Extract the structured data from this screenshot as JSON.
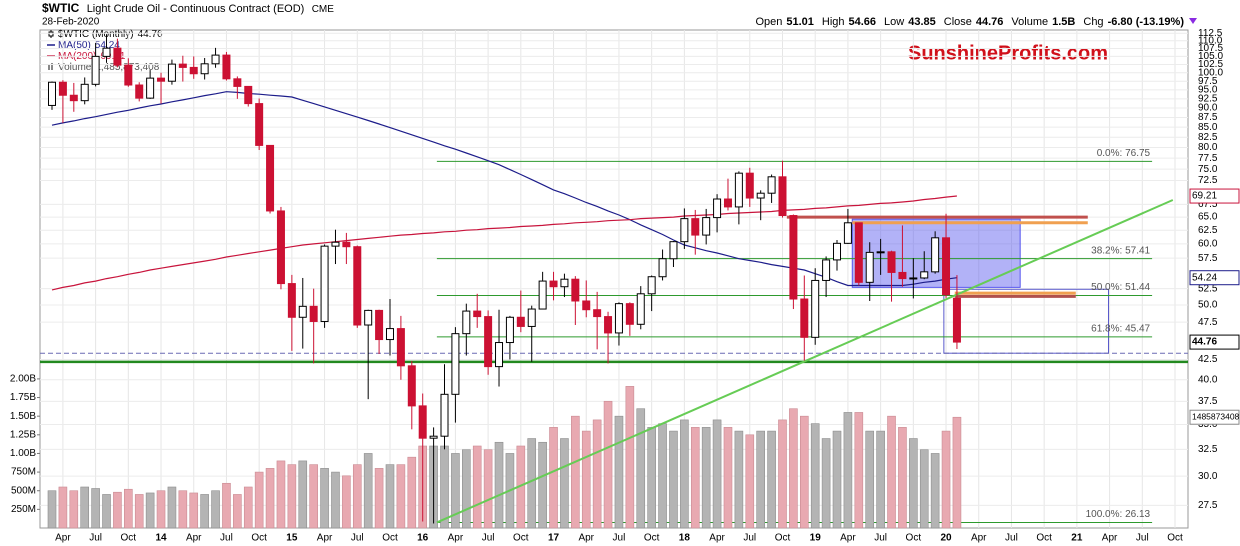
{
  "chart_data": {
    "type": "candlestick",
    "title": "$WTIC",
    "subtitle": "Light Crude Oil - Continuous Contract (EOD)",
    "exchange": "CME",
    "date": "28-Feb-2020",
    "watermark": "SunshineProfits.com",
    "quote": [
      {
        "label": "Open",
        "value": "51.01"
      },
      {
        "label": "High",
        "value": "54.66"
      },
      {
        "label": "Low",
        "value": "43.85"
      },
      {
        "label": "Close",
        "value": "44.76"
      },
      {
        "label": "Volume",
        "value": "1.5B"
      },
      {
        "label": "Chg",
        "value": "-6.80 (-13.19%)"
      }
    ],
    "log": true,
    "grid": true,
    "ylim": [
      25.7,
      113.6
    ],
    "yticks": [
      27.5,
      {
        "value": 30,
        "label": "30.0"
      },
      32.5,
      {
        "value": 35,
        "label": "35.0"
      },
      37.5,
      {
        "value": 40,
        "label": "40.0"
      },
      42.5,
      47.5,
      {
        "value": 50,
        "label": "50.0"
      },
      52.5,
      57.5,
      {
        "value": 60,
        "label": "60.0"
      },
      62.5,
      {
        "value": 65,
        "label": "65.0"
      },
      67.5,
      72.5,
      {
        "value": 75,
        "label": "75.0"
      },
      77.5,
      {
        "value": 80,
        "label": "80.0"
      },
      82.5,
      {
        "value": 85,
        "label": "85.0"
      },
      87.5,
      {
        "value": 90,
        "label": "90.0"
      },
      92.5,
      {
        "value": 95,
        "label": "95.0"
      },
      97.5,
      {
        "value": 100,
        "label": "100.0"
      },
      102.5,
      {
        "value": 105,
        "label": "105.0"
      },
      107.5,
      {
        "value": 110,
        "label": "110.0"
      },
      112.5
    ],
    "y2lim": [
      0,
      6680000000
    ],
    "y2ticks": [
      {
        "value": 250000000,
        "label": "250M"
      },
      {
        "value": 500000000,
        "label": "500M"
      },
      {
        "value": 750000000,
        "label": "750M"
      },
      {
        "value": 1000000000,
        "label": "1.00B"
      },
      {
        "value": 1250000000,
        "label": "1.25B"
      },
      {
        "value": 1500000000,
        "label": "1.50B"
      },
      {
        "value": 1750000000,
        "label": "1.75B"
      },
      {
        "value": 2000000000,
        "label": "2.00B"
      }
    ],
    "categories": [
      null,
      "Apr",
      null,
      null,
      "Jul",
      null,
      null,
      "Oct",
      null,
      null,
      "14",
      null,
      null,
      "Apr",
      null,
      null,
      "Jul",
      null,
      null,
      "Oct",
      null,
      null,
      "15",
      null,
      null,
      "Apr",
      null,
      null,
      "Jul",
      null,
      null,
      "Oct",
      null,
      null,
      "16",
      null,
      null,
      "Apr",
      null,
      null,
      "Jul",
      null,
      null,
      "Oct",
      null,
      null,
      "17",
      null,
      null,
      "Apr",
      null,
      null,
      "Jul",
      null,
      null,
      "Oct",
      null,
      null,
      "18",
      null,
      null,
      "Apr",
      null,
      null,
      "Jul",
      null,
      null,
      "Oct",
      null,
      null,
      "19",
      null,
      null,
      "Apr",
      null,
      null,
      "Jul",
      null,
      null,
      "Oct",
      null,
      null,
      "20",
      null,
      null,
      "Apr",
      null,
      null,
      "Jul",
      null,
      null,
      "Oct",
      null,
      null,
      "21",
      null,
      null,
      "Apr",
      null,
      null,
      "Jul",
      null,
      null,
      "Oct"
    ],
    "series": [
      {
        "name": "$WTIC (Monthly)",
        "type": "candlestick",
        "up_color": "#000000",
        "down_color": "#cc1133",
        "open": [
          90.7,
          97.2,
          93.5,
          92.0,
          96.6,
          105.0,
          107.6,
          102.3,
          96.4,
          92.7,
          98.4,
          97.5,
          102.6,
          101.6,
          99.7,
          102.7,
          105.4,
          98.2,
          96.0,
          91.2,
          80.5,
          66.2,
          53.3,
          48.2,
          49.8,
          47.6,
          59.6,
          60.3,
          59.5,
          47.1,
          49.2,
          45.1,
          46.6,
          41.7,
          37.0,
          33.6,
          33.8,
          38.3,
          45.9,
          49.1,
          48.3,
          41.6,
          44.7,
          48.2,
          46.9,
          49.4,
          53.7,
          52.8,
          54.0,
          50.6,
          49.3,
          48.3,
          46.0,
          50.2,
          47.2,
          51.7,
          54.4,
          57.4,
          60.4,
          64.7,
          61.6,
          64.9,
          68.6,
          67.0,
          74.1,
          68.8,
          69.8,
          73.3,
          65.3,
          50.9,
          45.4,
          53.8,
          57.2,
          60.1,
          63.9,
          53.5,
          58.5,
          58.6,
          55.1,
          54.1,
          54.2,
          55.2,
          61.1,
          51.01,
          null,
          null,
          null,
          null,
          null,
          null,
          null,
          null,
          null,
          null,
          null,
          null,
          null,
          null,
          null,
          null,
          null,
          null,
          null,
          null
        ],
        "high": [
          97.4,
          97.8,
          97.0,
          98.6,
          109.3,
          112.2,
          110.7,
          104.4,
          97.2,
          100.8,
          100.0,
          104.0,
          105.2,
          104.99,
          104.5,
          107.7,
          106.4,
          98.9,
          96.0,
          92.6,
          80.5,
          67.0,
          54.7,
          54.2,
          52.5,
          59.9,
          62.6,
          62.0,
          59.7,
          49.3,
          49.3,
          50.9,
          48.4,
          42.3,
          38.4,
          34.7,
          41.9,
          46.8,
          50.2,
          51.7,
          49.2,
          49.3,
          48.4,
          52.2,
          49.9,
          55.2,
          55.2,
          54.9,
          54.5,
          53.8,
          52.0,
          49.0,
          50.4,
          50.4,
          52.9,
          54.6,
          59.0,
          60.5,
          66.7,
          66.4,
          66.6,
          69.6,
          72.9,
          74.5,
          75.3,
          70.4,
          73.8,
          76.9,
          65.5,
          54.6,
          55.8,
          57.8,
          60.7,
          66.6,
          63.9,
          60.3,
          60.9,
          58.8,
          63.4,
          57.5,
          58.7,
          62.3,
          65.65,
          54.66,
          null,
          null,
          null,
          null,
          null,
          null,
          null,
          null,
          null,
          null,
          null,
          null,
          null,
          null,
          null,
          null,
          null,
          null,
          null,
          null
        ],
        "low": [
          89.5,
          86.1,
          89.0,
          91.0,
          96.0,
          103.0,
          101.6,
          95.9,
          91.8,
          92.5,
          91.2,
          96.5,
          97.4,
          98.2,
          98.0,
          101.5,
          97.7,
          92.5,
          90.4,
          79.4,
          65.7,
          52.4,
          43.6,
          43.9,
          42.0,
          46.7,
          56.5,
          56.5,
          46.7,
          37.75,
          43.2,
          43.0,
          40.0,
          34.5,
          26.2,
          26.05,
          32.5,
          35.2,
          43.0,
          46.7,
          40.6,
          39.2,
          42.5,
          46.1,
          42.2,
          49.4,
          50.7,
          51.2,
          47.1,
          48.2,
          43.8,
          42.0,
          44.3,
          45.6,
          46.5,
          49.1,
          53.8,
          56.0,
          59.1,
          58.1,
          59.9,
          62.1,
          66.3,
          63.6,
          67.0,
          64.4,
          67.8,
          64.9,
          49.4,
          42.36,
          44.4,
          51.2,
          55.4,
          60.0,
          53.0,
          50.6,
          54.7,
          50.5,
          52.8,
          50.99,
          54.0,
          54.9,
          51.06,
          43.85,
          null,
          null,
          null,
          null,
          null,
          null,
          null,
          null,
          null,
          null,
          null,
          null,
          null,
          null,
          null,
          null,
          null,
          null,
          null,
          null
        ],
        "close": [
          97.2,
          93.5,
          92.0,
          96.6,
          105.0,
          107.6,
          102.3,
          96.4,
          92.7,
          98.4,
          97.5,
          102.6,
          101.6,
          99.7,
          102.7,
          105.4,
          98.2,
          96.0,
          91.2,
          80.5,
          66.2,
          53.3,
          48.2,
          49.8,
          47.6,
          59.6,
          60.3,
          59.5,
          47.1,
          49.2,
          45.1,
          46.6,
          41.7,
          37.0,
          33.6,
          33.8,
          38.3,
          45.9,
          49.1,
          48.3,
          41.6,
          44.7,
          48.2,
          46.9,
          49.4,
          53.7,
          52.8,
          54.0,
          50.6,
          49.3,
          48.3,
          46.0,
          50.2,
          47.2,
          51.7,
          54.4,
          57.4,
          60.4,
          64.7,
          61.6,
          64.9,
          68.6,
          67.0,
          74.1,
          68.8,
          69.8,
          73.3,
          65.3,
          50.9,
          45.4,
          53.8,
          57.2,
          60.1,
          63.9,
          53.5,
          58.5,
          58.6,
          55.1,
          54.1,
          54.2,
          55.2,
          61.1,
          51.56,
          44.76,
          null,
          null,
          null,
          null,
          null,
          null,
          null,
          null,
          null,
          null,
          null,
          null,
          null,
          null,
          null,
          null,
          null,
          null,
          null,
          null
        ]
      },
      {
        "name": "MA(50)",
        "type": "line",
        "color": "#1c1c8a",
        "values": [
          85.5,
          86.1,
          86.6,
          87.2,
          87.7,
          88.3,
          88.9,
          89.4,
          90.0,
          90.6,
          91.1,
          91.7,
          92.2,
          92.8,
          93.4,
          93.9,
          94.5,
          94.3,
          94.0,
          93.8,
          93.5,
          93.3,
          93.0,
          92.1,
          91.2,
          90.3,
          89.4,
          88.5,
          87.6,
          86.7,
          85.8,
          84.9,
          84.0,
          83.1,
          82.2,
          81.3,
          80.4,
          79.6,
          78.7,
          77.8,
          76.9,
          76.0,
          74.9,
          73.8,
          72.7,
          71.6,
          70.5,
          69.7,
          68.8,
          67.9,
          67.1,
          66.2,
          65.4,
          64.5,
          63.5,
          62.6,
          61.7,
          60.7,
          59.8,
          59.3,
          58.8,
          58.4,
          57.9,
          57.4,
          57.1,
          56.8,
          56.4,
          56.1,
          55.8,
          55.5,
          54.9,
          54.3,
          53.6,
          53.0,
          53.0,
          53.0,
          53.0,
          53.0,
          53.0,
          53.2,
          53.5,
          53.7,
          54.0,
          54.24,
          null,
          null,
          null,
          null,
          null,
          null,
          null,
          null,
          null,
          null,
          null,
          null,
          null,
          null,
          null,
          null,
          null,
          null,
          null,
          null
        ]
      },
      {
        "name": "MA(200)",
        "type": "line",
        "color": "#c8143c",
        "values": [
          52.3,
          52.7,
          53.0,
          53.4,
          53.7,
          54.1,
          54.4,
          54.8,
          55.1,
          55.5,
          55.8,
          56.1,
          56.4,
          56.7,
          57.0,
          57.3,
          57.7,
          58.0,
          58.3,
          58.6,
          58.9,
          59.2,
          59.5,
          59.8,
          60.0,
          60.2,
          60.4,
          60.6,
          60.8,
          61.0,
          61.2,
          61.4,
          61.6,
          61.7,
          61.9,
          62.0,
          62.2,
          62.3,
          62.5,
          62.6,
          62.8,
          62.9,
          63.0,
          63.2,
          63.3,
          63.4,
          63.6,
          63.7,
          63.9,
          64.0,
          64.1,
          64.3,
          64.4,
          64.5,
          64.7,
          64.8,
          64.9,
          65.0,
          65.2,
          65.3,
          65.4,
          65.5,
          65.7,
          65.8,
          65.9,
          66.0,
          66.1,
          66.3,
          66.4,
          66.5,
          66.7,
          66.8,
          67.0,
          67.2,
          67.3,
          67.5,
          67.7,
          67.8,
          68.0,
          68.2,
          68.5,
          68.7,
          69.0,
          69.21,
          null,
          null,
          null,
          null,
          null,
          null,
          null,
          null,
          null,
          null,
          null,
          null,
          null,
          null,
          null,
          null,
          null,
          null,
          null,
          null
        ]
      },
      {
        "name": "Volume",
        "type": "bar",
        "axis": "y2",
        "up_color": "#b4b4b4",
        "down_color": "#e8a9b1",
        "last_value_label": "1,485,873,408",
        "values": [
          500000000,
          550000000,
          500000000,
          550000000,
          530000000,
          450000000,
          480000000,
          520000000,
          450000000,
          470000000,
          500000000,
          550000000,
          500000000,
          470000000,
          450000000,
          500000000,
          600000000,
          450000000,
          550000000,
          750000000,
          800000000,
          900000000,
          850000000,
          900000000,
          850000000,
          800000000,
          750000000,
          700000000,
          850000000,
          1000000000,
          800000000,
          850000000,
          850000000,
          950000000,
          1100000000,
          1100000000,
          1100000000,
          1000000000,
          1050000000,
          1100000000,
          1050000000,
          1150000000,
          1000000000,
          1100000000,
          1200000000,
          1150000000,
          1350000000,
          1200000000,
          1500000000,
          1300000000,
          1450000000,
          1700000000,
          1500000000,
          1900000000,
          1600000000,
          1350000000,
          1400000000,
          1300000000,
          1450000000,
          1350000000,
          1350000000,
          1450000000,
          1350000000,
          1300000000,
          1250000000,
          1300000000,
          1300000000,
          1450000000,
          1600000000,
          1500000000,
          1400000000,
          1200000000,
          1300000000,
          1550000000,
          1550000000,
          1300000000,
          1300000000,
          1500000000,
          1350000000,
          1200000000,
          1050000000,
          1000000000,
          1300000000,
          1485873408,
          null,
          null,
          null,
          null,
          null,
          null,
          null,
          null,
          null,
          null,
          null,
          null,
          null,
          null,
          null,
          null,
          null,
          null,
          null,
          null
        ]
      }
    ],
    "fib": {
      "x": [
        35.3,
        100.9
      ],
      "color": "#2e9a2e",
      "levels": [
        {
          "value": 76.75,
          "label": "0.0%: 76.75"
        },
        {
          "value": 57.41,
          "label": "38.2%: 57.41"
        },
        {
          "value": 51.44,
          "label": "50.0%: 51.44"
        },
        {
          "value": 45.47,
          "label": "61.8%: 45.47"
        },
        {
          "value": 26.13,
          "label": "100.0%: 26.13"
        }
      ]
    },
    "levels": [
      {
        "value": 42.2,
        "color": "#22891f",
        "dashed": false
      },
      {
        "value": 43.3,
        "color": "#6a6ab4",
        "dashed": true
      }
    ],
    "segments": [
      {
        "x": [
          67.4,
          95.0
        ],
        "value": 65.0,
        "color": "#c0504d"
      },
      {
        "x": [
          73.4,
          95.0
        ],
        "value": 63.9,
        "color": "#f0a050"
      },
      {
        "x": [
          82.8,
          93.9
        ],
        "value": 51.3,
        "color": "#b0504d"
      },
      {
        "x": [
          82.8,
          93.9
        ],
        "value": 51.8,
        "color": "#f0a050"
      }
    ],
    "rectangles": [
      {
        "x": [
          73.4,
          88.8
        ],
        "y": [
          52.7,
          64.6
        ],
        "color": "#5555ee",
        "filled": true
      },
      {
        "x": [
          81.8,
          96.9
        ],
        "y": [
          43.3,
          52.4
        ],
        "color": "#5a5acc",
        "filled": false
      }
    ],
    "trendline": {
      "x": [
        35.3,
        102.8
      ],
      "y": [
        26.13,
        68.4
      ],
      "color": "#66cc55"
    }
  }
}
